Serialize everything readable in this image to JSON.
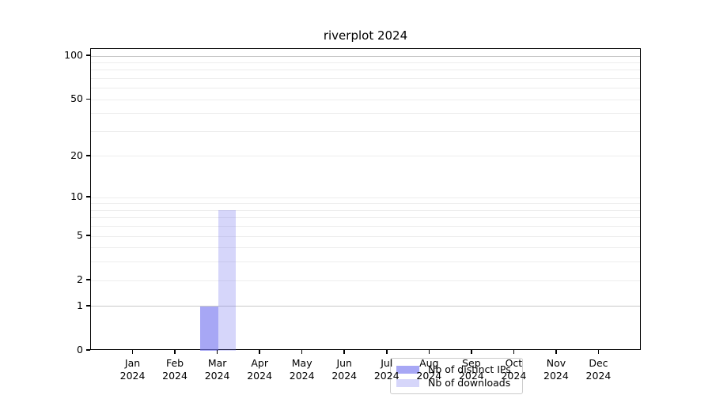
{
  "title": "riverplot 2024",
  "legend": {
    "items": [
      {
        "label": "Nb of distinct IPs",
        "color": "rgba(120,120,240,0.65)"
      },
      {
        "label": "Nb of downloads",
        "color": "rgba(120,120,240,0.30)"
      }
    ]
  },
  "chart_data": {
    "type": "bar",
    "title": "riverplot 2024",
    "categories": [
      "Jan 2024",
      "Feb 2024",
      "Mar 2024",
      "Apr 2024",
      "May 2024",
      "Jun 2024",
      "Jul 2024",
      "Aug 2024",
      "Sep 2024",
      "Oct 2024",
      "Nov 2024",
      "Dec 2024"
    ],
    "month_labels": [
      "Jan",
      "Feb",
      "Mar",
      "Apr",
      "May",
      "Jun",
      "Jul",
      "Aug",
      "Sep",
      "Oct",
      "Nov",
      "Dec"
    ],
    "year_label": "2024",
    "series": [
      {
        "name": "Nb of distinct IPs",
        "color": "rgba(120,120,240,0.65)",
        "values": [
          0,
          0,
          1,
          0,
          0,
          0,
          0,
          0,
          0,
          0,
          0,
          0
        ]
      },
      {
        "name": "Nb of downloads",
        "color": "rgba(120,120,240,0.30)",
        "values": [
          0,
          0,
          8,
          0,
          0,
          0,
          0,
          0,
          0,
          0,
          0,
          0
        ]
      }
    ],
    "xlabel": "",
    "ylabel": "",
    "yscale": "log1p",
    "ylim": [
      0,
      112
    ],
    "yticks": [
      100,
      50,
      20,
      10,
      5,
      2,
      1,
      0
    ],
    "grid_values": [
      1,
      2,
      3,
      4,
      5,
      6,
      7,
      8,
      9,
      10,
      20,
      30,
      40,
      50,
      60,
      70,
      80,
      90,
      100
    ],
    "grid_emphasis_values": [
      1,
      100
    ],
    "grid": true,
    "legend_position": "lower center inside"
  }
}
